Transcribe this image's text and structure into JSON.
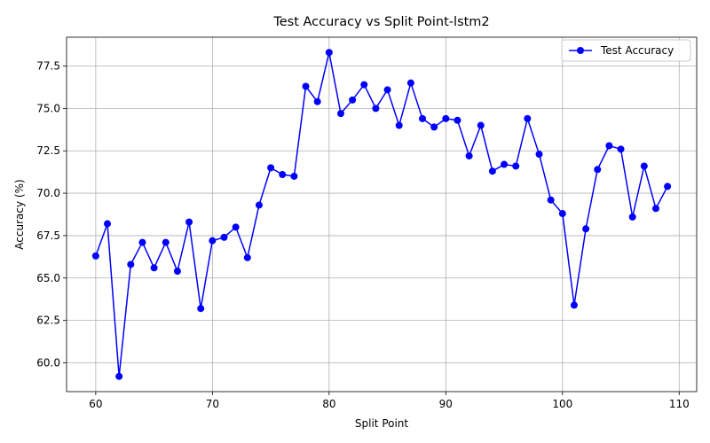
{
  "chart_data": {
    "type": "line",
    "title": "Test Accuracy vs Split Point-lstm2",
    "xlabel": "Split Point",
    "ylabel": "Accuracy (%)",
    "xlim": [
      57.5,
      111.5
    ],
    "ylim": [
      58.3,
      79.2
    ],
    "xticks": [
      60,
      70,
      80,
      90,
      100,
      110
    ],
    "yticks": [
      60.0,
      62.5,
      65.0,
      67.5,
      70.0,
      72.5,
      75.0,
      77.5
    ],
    "grid": true,
    "legend_position": "top-right",
    "series": [
      {
        "name": "Test Accuracy",
        "color": "#0000ff",
        "marker": "circle",
        "x": [
          60,
          61,
          62,
          63,
          64,
          65,
          66,
          67,
          68,
          69,
          70,
          71,
          72,
          73,
          74,
          75,
          76,
          77,
          78,
          79,
          80,
          81,
          82,
          83,
          84,
          85,
          86,
          87,
          88,
          89,
          90,
          91,
          92,
          93,
          94,
          95,
          96,
          97,
          98,
          99,
          100,
          101,
          102,
          103,
          104,
          105,
          106,
          107,
          108,
          109
        ],
        "y": [
          66.3,
          68.2,
          59.2,
          65.8,
          67.1,
          65.6,
          67.1,
          65.4,
          68.3,
          63.2,
          67.2,
          67.4,
          68.0,
          66.2,
          69.3,
          71.5,
          71.1,
          71.0,
          76.3,
          75.4,
          78.3,
          74.7,
          75.5,
          76.4,
          75.0,
          76.1,
          74.0,
          76.5,
          74.4,
          73.9,
          74.4,
          74.3,
          72.2,
          74.0,
          71.3,
          71.7,
          71.6,
          74.4,
          72.3,
          69.6,
          68.8,
          63.4,
          67.9,
          71.4,
          72.8,
          72.6,
          68.6,
          71.6,
          69.1,
          70.4
        ]
      }
    ]
  }
}
